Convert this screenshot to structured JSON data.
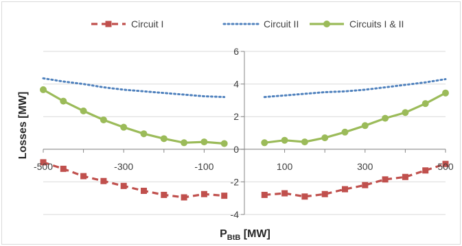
{
  "chart_data": {
    "type": "line",
    "title": "",
    "xlabel": "P",
    "xlabel_sub": "BtB",
    "xlabel_unit": " [MW]",
    "ylabel": "Losses [MW]",
    "xlim": [
      -500,
      500
    ],
    "ylim": [
      -4,
      6
    ],
    "x_ticks": [
      -500,
      -300,
      -100,
      100,
      300,
      500
    ],
    "x_tick_labels": [
      "-500",
      "-300",
      "-100",
      "100",
      "300",
      "500"
    ],
    "y_ticks": [
      -4,
      -2,
      0,
      2,
      4,
      6
    ],
    "y_tick_labels": [
      "-4",
      "-2",
      "0",
      "2",
      "4",
      "6"
    ],
    "grid": "horizontal",
    "legend_position": "top",
    "series": [
      {
        "name": "Circuit I",
        "style": "dashed",
        "marker": "square",
        "color": "#C0504D",
        "segments": [
          {
            "x": [
              -500,
              -450,
              -400,
              -350,
              -300,
              -250,
              -200,
              -150,
              -100,
              -50
            ],
            "y": [
              -0.8,
              -1.2,
              -1.65,
              -1.95,
              -2.25,
              -2.55,
              -2.8,
              -2.95,
              -2.75,
              -2.85
            ]
          },
          {
            "x": [
              50,
              100,
              150,
              200,
              250,
              300,
              350,
              400,
              450,
              500
            ],
            "y": [
              -2.8,
              -2.7,
              -2.9,
              -2.75,
              -2.45,
              -2.2,
              -1.85,
              -1.7,
              -1.3,
              -0.9
            ]
          }
        ]
      },
      {
        "name": "Circuit II",
        "style": "dotted",
        "marker": "none",
        "color": "#4F81BD",
        "segments": [
          {
            "x": [
              -500,
              -450,
              -400,
              -350,
              -300,
              -250,
              -200,
              -150,
              -100,
              -50
            ],
            "y": [
              4.35,
              4.15,
              4.0,
              3.8,
              3.65,
              3.55,
              3.45,
              3.35,
              3.25,
              3.2
            ]
          },
          {
            "x": [
              50,
              100,
              150,
              200,
              250,
              300,
              350,
              400,
              450,
              500
            ],
            "y": [
              3.2,
              3.3,
              3.4,
              3.5,
              3.55,
              3.65,
              3.8,
              3.95,
              4.1,
              4.3
            ]
          }
        ]
      },
      {
        "name": "Circuits I & II",
        "style": "solid",
        "marker": "circle",
        "color": "#9BBB59",
        "segments": [
          {
            "x": [
              -500,
              -450,
              -400,
              -350,
              -300,
              -250,
              -200,
              -150,
              -100,
              -50
            ],
            "y": [
              3.65,
              2.95,
              2.35,
              1.8,
              1.35,
              0.95,
              0.65,
              0.4,
              0.45,
              0.35
            ]
          },
          {
            "x": [
              50,
              100,
              150,
              200,
              250,
              300,
              350,
              400,
              450,
              500
            ],
            "y": [
              0.4,
              0.55,
              0.45,
              0.7,
              1.05,
              1.45,
              1.9,
              2.25,
              2.8,
              3.45
            ]
          }
        ]
      }
    ]
  }
}
